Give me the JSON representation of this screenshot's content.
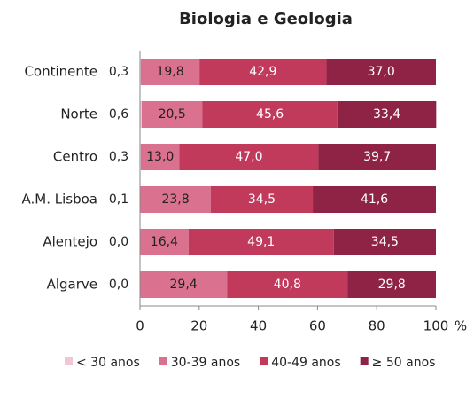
{
  "chart_data": {
    "type": "stacked-bar-horizontal",
    "title": "Biologia e Geologia",
    "categories": [
      "Continente",
      "Norte",
      "Centro",
      "A.M. Lisboa",
      "Alentejo",
      "Algarve"
    ],
    "series": [
      {
        "name": "< 30 anos",
        "color": "#f3c6d3",
        "values": [
          0.3,
          0.6,
          0.3,
          0.1,
          0.0,
          0.0
        ],
        "value_labels": [
          "0,3",
          "0,6",
          "0,3",
          "0,1",
          "0,0",
          "0,0"
        ]
      },
      {
        "name": "30-39 anos",
        "color": "#d9718f",
        "values": [
          19.8,
          20.5,
          13.0,
          23.8,
          16.4,
          29.4
        ],
        "value_labels": [
          "19,8",
          "20,5",
          "13,0",
          "23,8",
          "16,4",
          "29,4"
        ]
      },
      {
        "name": "40-49 anos",
        "color": "#c13a5c",
        "values": [
          42.9,
          45.6,
          47.0,
          34.5,
          49.1,
          40.8
        ],
        "value_labels": [
          "42,9",
          "45,6",
          "47,0",
          "34,5",
          "49,1",
          "40,8"
        ]
      },
      {
        "name": "≥ 50 anos",
        "color": "#8e2346",
        "values": [
          37.0,
          33.4,
          39.7,
          41.6,
          34.5,
          29.8
        ],
        "value_labels": [
          "37,0",
          "33,4",
          "39,7",
          "41,6",
          "34,5",
          "29,8"
        ]
      }
    ],
    "xlabel": "%",
    "xlim": [
      0,
      100
    ],
    "xticks": [
      0,
      20,
      40,
      60,
      80,
      100
    ]
  }
}
